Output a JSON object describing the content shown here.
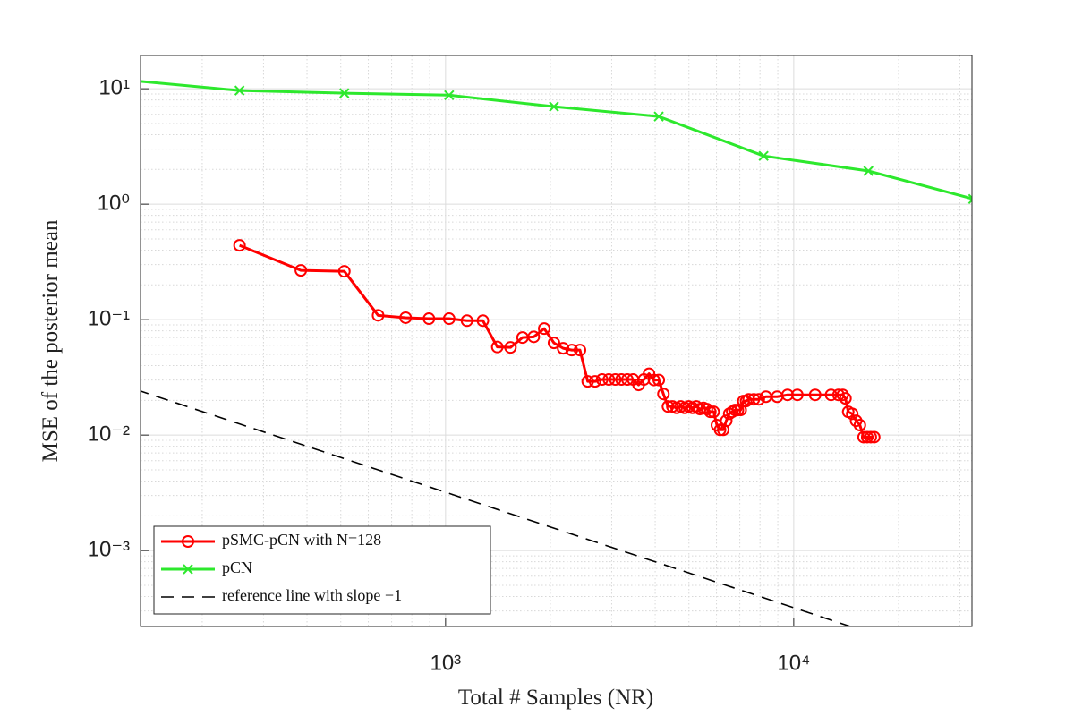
{
  "chart_data": {
    "type": "line",
    "xlabel": "Total # Samples (NR)",
    "ylabel": "MSE of the posterior mean",
    "xscale": "log",
    "yscale": "log",
    "xlim": [
      133,
      32500
    ],
    "ylim": [
      0.00022,
      19.4
    ],
    "xticks": [
      {
        "value": 1000,
        "label": "10³"
      },
      {
        "value": 10000,
        "label": "10⁴"
      }
    ],
    "yticks": [
      {
        "value": 0.001,
        "label": "10⁻³"
      },
      {
        "value": 0.01,
        "label": "10⁻²"
      },
      {
        "value": 0.1,
        "label": "10⁻¹"
      },
      {
        "value": 1,
        "label": "10⁰"
      },
      {
        "value": 10,
        "label": "10¹"
      }
    ],
    "grid": true,
    "minor_grid": true,
    "legend": "lower left",
    "series": [
      {
        "name": "pSMC-pCN with N=128",
        "color": "#ff0000",
        "marker": "o",
        "dash": false,
        "x": [
          256,
          384,
          512,
          640,
          768,
          896,
          1024,
          1152,
          1280,
          1408,
          1536,
          1664,
          1792,
          1920,
          2048,
          2176,
          2304,
          2432,
          2560,
          2688,
          2816,
          2944,
          3072,
          3200,
          3328,
          3456,
          3584,
          3712,
          3840,
          3968,
          4096,
          4224,
          4352,
          4480,
          4608,
          4736,
          4864,
          4992,
          5120,
          5248,
          5376,
          5504,
          5632,
          5760,
          5888,
          6016,
          6144,
          6272,
          6400,
          6528,
          6656,
          6784,
          6912,
          7040,
          7168,
          7296,
          7424,
          7680,
          7936,
          8320,
          8960,
          9600,
          10240,
          11520,
          12800,
          13440,
          13824,
          14080,
          14336,
          14720,
          15104,
          15488,
          15872,
          16256,
          16640,
          17024
        ],
        "values": [
          0.44,
          0.267,
          0.262,
          0.109,
          0.104,
          0.102,
          0.102,
          0.098,
          0.098,
          0.058,
          0.0575,
          0.07,
          0.071,
          0.0836,
          0.0629,
          0.0565,
          0.0545,
          0.0545,
          0.0292,
          0.0292,
          0.0303,
          0.0303,
          0.0303,
          0.0303,
          0.0303,
          0.0303,
          0.0272,
          0.0303,
          0.034,
          0.03,
          0.03,
          0.0227,
          0.0177,
          0.0177,
          0.0172,
          0.0177,
          0.0172,
          0.0177,
          0.0172,
          0.0177,
          0.0168,
          0.0172,
          0.0168,
          0.0159,
          0.0159,
          0.0122,
          0.0111,
          0.0111,
          0.0133,
          0.0153,
          0.0159,
          0.0165,
          0.0165,
          0.0165,
          0.0197,
          0.0197,
          0.0204,
          0.0204,
          0.0204,
          0.0215,
          0.0215,
          0.0223,
          0.0223,
          0.0223,
          0.0223,
          0.0223,
          0.0223,
          0.0208,
          0.0159,
          0.0153,
          0.0133,
          0.0122,
          0.0096,
          0.0096,
          0.0096,
          0.0096
        ]
      },
      {
        "name": "pCN",
        "color": "#2de82d",
        "marker": "x",
        "dash": false,
        "x": [
          128,
          256,
          512,
          1024,
          2048,
          4096,
          8192,
          16384,
          32768
        ],
        "values": [
          11.7,
          9.65,
          9.15,
          8.8,
          7.0,
          5.75,
          2.62,
          1.94,
          1.11
        ]
      },
      {
        "name": "reference line with slope −1",
        "color": "#000000",
        "marker": "none",
        "dash": true,
        "x": [
          100,
          100000
        ],
        "values": [
          0.032,
          3.2e-05
        ]
      }
    ]
  }
}
